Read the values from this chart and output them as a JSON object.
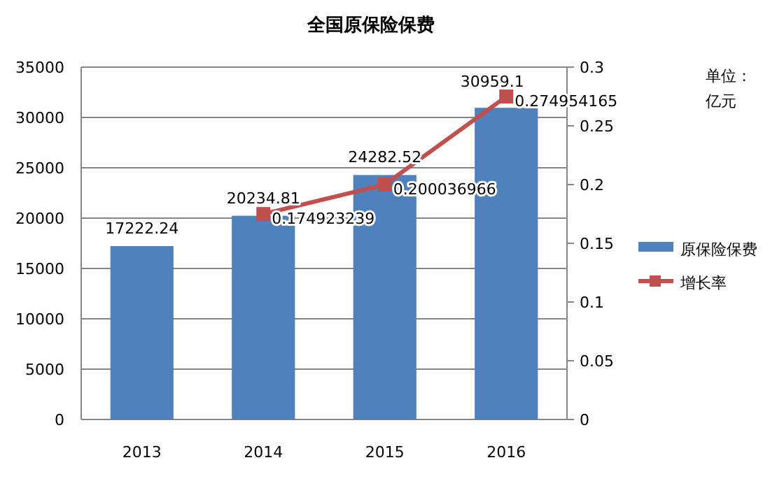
{
  "chart_data": {
    "type": "bar",
    "title": "全国原保险保费",
    "categories": [
      "2013",
      "2014",
      "2015",
      "2016"
    ],
    "series": [
      {
        "name": "原保险保费",
        "color": "#4f81bd",
        "values": [
          17222.24,
          20234.81,
          24282.52,
          30959.1
        ]
      },
      {
        "name": "增长率",
        "type": "line",
        "axis": "y2",
        "color": "#c0504d",
        "marker": "square",
        "values": [
          null,
          0.174923239,
          0.200036966,
          0.274954165
        ]
      }
    ],
    "ylim": [
      0,
      35000
    ],
    "yticks": [
      0,
      5000,
      10000,
      15000,
      20000,
      25000,
      30000,
      35000
    ],
    "y2lim": [
      0,
      0.3
    ],
    "y2ticks": [
      0,
      0.05,
      0.1,
      0.15,
      0.2,
      0.25,
      0.3
    ],
    "grid": "y",
    "legend": "right",
    "data_labels": true,
    "annotations": [
      "单位：",
      "亿元"
    ]
  }
}
